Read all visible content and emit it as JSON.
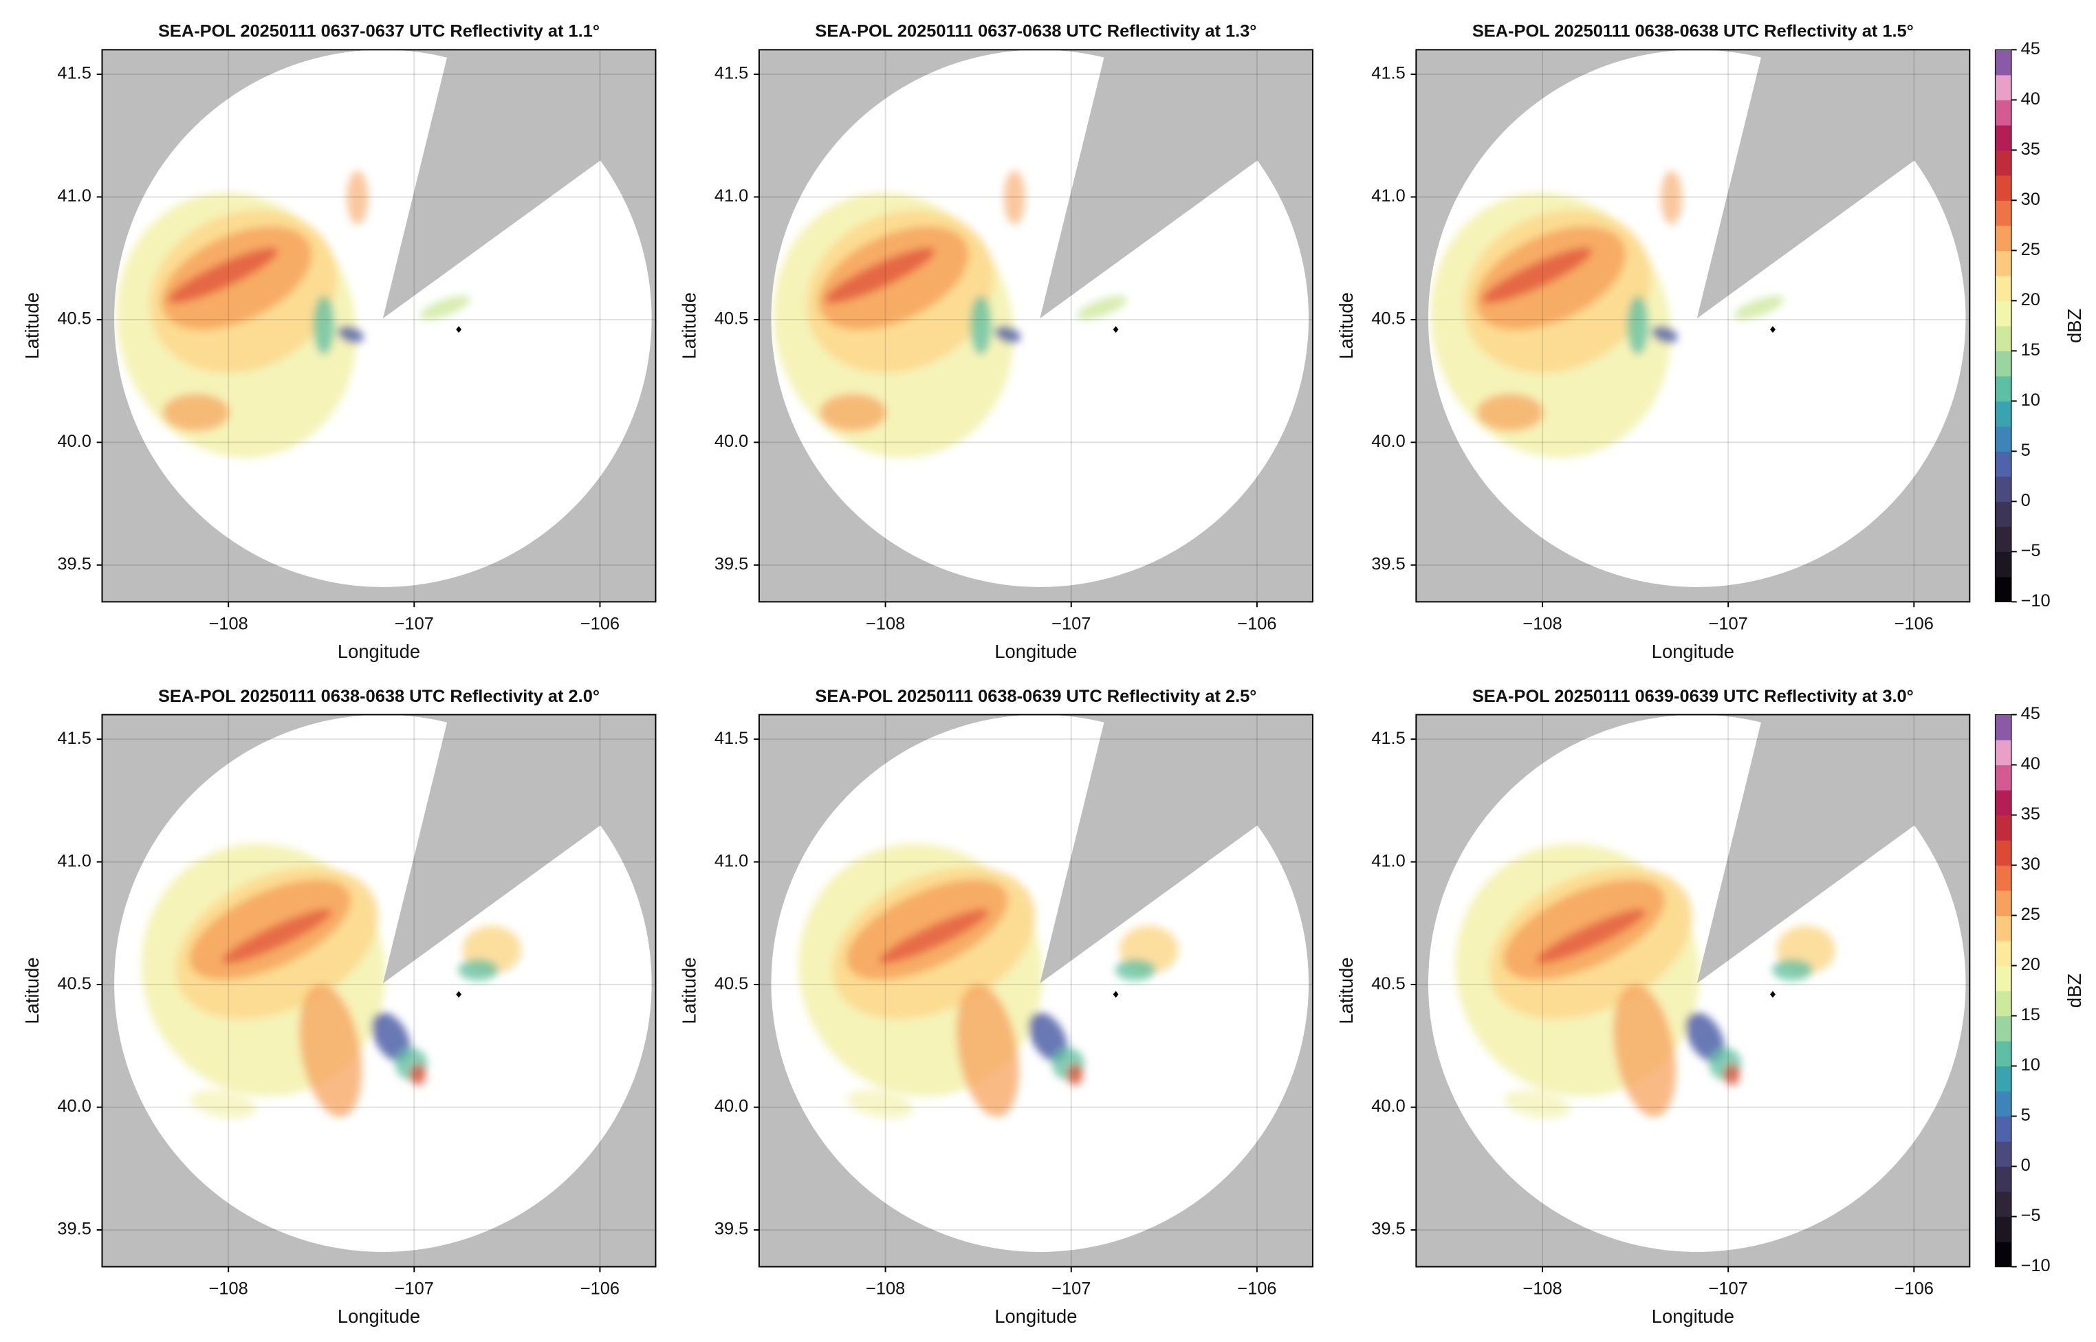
{
  "chart_data": [
    {
      "type": "radar",
      "title": "SEA-POL 20250111 0637-0637 UTC Reflectivity at 1.1°",
      "xlabel": "Longitude",
      "ylabel": "Latitude",
      "xlim": [
        -108.68,
        -105.7
      ],
      "ylim": [
        39.35,
        41.6
      ],
      "xticks": [
        {
          "value": -108,
          "label": "−108"
        },
        {
          "value": -107,
          "label": "−107"
        },
        {
          "value": -106,
          "label": "−106"
        }
      ],
      "yticks": [
        39.5,
        {
          "value": 40,
          "label": "40.0"
        },
        40.5,
        {
          "value": 41,
          "label": "41.0"
        },
        41.5
      ],
      "grid": true,
      "site": {
        "x": -106.76,
        "y": 40.46
      }
    },
    {
      "type": "radar",
      "title": "SEA-POL 20250111 0637-0638 UTC Reflectivity at 1.3°",
      "xlabel": "Longitude",
      "ylabel": "Latitude",
      "xlim": [
        -108.68,
        -105.7
      ],
      "ylim": [
        39.35,
        41.6
      ],
      "xticks": [
        {
          "value": -108,
          "label": "−108"
        },
        {
          "value": -107,
          "label": "−107"
        },
        {
          "value": -106,
          "label": "−106"
        }
      ],
      "yticks": [
        39.5,
        {
          "value": 40,
          "label": "40.0"
        },
        40.5,
        {
          "value": 41,
          "label": "41.0"
        },
        41.5
      ],
      "grid": true,
      "site": {
        "x": -106.76,
        "y": 40.46
      }
    },
    {
      "type": "radar",
      "title": "SEA-POL 20250111 0638-0638 UTC Reflectivity at 1.5°",
      "xlabel": "Longitude",
      "ylabel": "Latitude",
      "xlim": [
        -108.68,
        -105.7
      ],
      "ylim": [
        39.35,
        41.6
      ],
      "xticks": [
        {
          "value": -108,
          "label": "−108"
        },
        {
          "value": -107,
          "label": "−107"
        },
        {
          "value": -106,
          "label": "−106"
        }
      ],
      "yticks": [
        39.5,
        {
          "value": 40,
          "label": "40.0"
        },
        40.5,
        {
          "value": 41,
          "label": "41.0"
        },
        41.5
      ],
      "grid": true,
      "site": {
        "x": -106.76,
        "y": 40.46
      },
      "colorbar": {
        "label": "dBZ",
        "lim": [
          -10,
          45
        ],
        "ticks": [
          {
            "value": -10,
            "label": "−10"
          },
          {
            "value": -5,
            "label": "−5"
          },
          0,
          5,
          10,
          15,
          20,
          25,
          30,
          35,
          40,
          45
        ],
        "colors": [
          "#050308",
          "#1c1622",
          "#2e2638",
          "#3d3556",
          "#4a4a80",
          "#4f63ad",
          "#3d84bb",
          "#3aa3b0",
          "#5dbfa3",
          "#99d59f",
          "#cde99c",
          "#f1f7aa",
          "#fde99a",
          "#fdc97d",
          "#f8a15d",
          "#ee7445",
          "#dc4a35",
          "#c22b3a",
          "#b51d55",
          "#d35b92",
          "#e8a0c8",
          "#8a5aa8"
        ]
      }
    },
    {
      "type": "radar",
      "title": "SEA-POL 20250111 0638-0638 UTC Reflectivity at 2.0°",
      "xlabel": "Longitude",
      "ylabel": "Latitude",
      "xlim": [
        -108.68,
        -105.7
      ],
      "ylim": [
        39.35,
        41.6
      ],
      "xticks": [
        {
          "value": -108,
          "label": "−108"
        },
        {
          "value": -107,
          "label": "−107"
        },
        {
          "value": -106,
          "label": "−106"
        }
      ],
      "yticks": [
        39.5,
        {
          "value": 40,
          "label": "40.0"
        },
        40.5,
        {
          "value": 41,
          "label": "41.0"
        },
        41.5
      ],
      "grid": true,
      "site": {
        "x": -106.76,
        "y": 40.46
      }
    },
    {
      "type": "radar",
      "title": "SEA-POL 20250111 0638-0639 UTC Reflectivity at 2.5°",
      "xlabel": "Longitude",
      "ylabel": "Latitude",
      "xlim": [
        -108.68,
        -105.7
      ],
      "ylim": [
        39.35,
        41.6
      ],
      "xticks": [
        {
          "value": -108,
          "label": "−108"
        },
        {
          "value": -107,
          "label": "−107"
        },
        {
          "value": -106,
          "label": "−106"
        }
      ],
      "yticks": [
        39.5,
        {
          "value": 40,
          "label": "40.0"
        },
        40.5,
        {
          "value": 41,
          "label": "41.0"
        },
        41.5
      ],
      "grid": true,
      "site": {
        "x": -106.76,
        "y": 40.46
      }
    },
    {
      "type": "radar",
      "title": "SEA-POL 20250111 0639-0639 UTC Reflectivity at 3.0°",
      "xlabel": "Longitude",
      "ylabel": "Latitude",
      "xlim": [
        -108.68,
        -105.7
      ],
      "ylim": [
        39.35,
        41.6
      ],
      "xticks": [
        {
          "value": -108,
          "label": "−108"
        },
        {
          "value": -107,
          "label": "−107"
        },
        {
          "value": -106,
          "label": "−106"
        }
      ],
      "yticks": [
        39.5,
        {
          "value": 40,
          "label": "40.0"
        },
        40.5,
        {
          "value": 41,
          "label": "41.0"
        },
        41.5
      ],
      "grid": true,
      "site": {
        "x": -106.76,
        "y": 40.46
      },
      "colorbar": {
        "label": "dBZ",
        "lim": [
          -10,
          45
        ],
        "ticks": [
          {
            "value": -10,
            "label": "−10"
          },
          {
            "value": -5,
            "label": "−5"
          },
          0,
          5,
          10,
          15,
          20,
          25,
          30,
          35,
          40,
          45
        ],
        "colors": [
          "#050308",
          "#1c1622",
          "#2e2638",
          "#3d3556",
          "#4a4a80",
          "#4f63ad",
          "#3d84bb",
          "#3aa3b0",
          "#5dbfa3",
          "#99d59f",
          "#cde99c",
          "#f1f7aa",
          "#fde99a",
          "#fdc97d",
          "#f8a15d",
          "#ee7445",
          "#dc4a35",
          "#c22b3a",
          "#b51d55",
          "#d35b92",
          "#e8a0c8",
          "#8a5aa8"
        ]
      }
    }
  ]
}
